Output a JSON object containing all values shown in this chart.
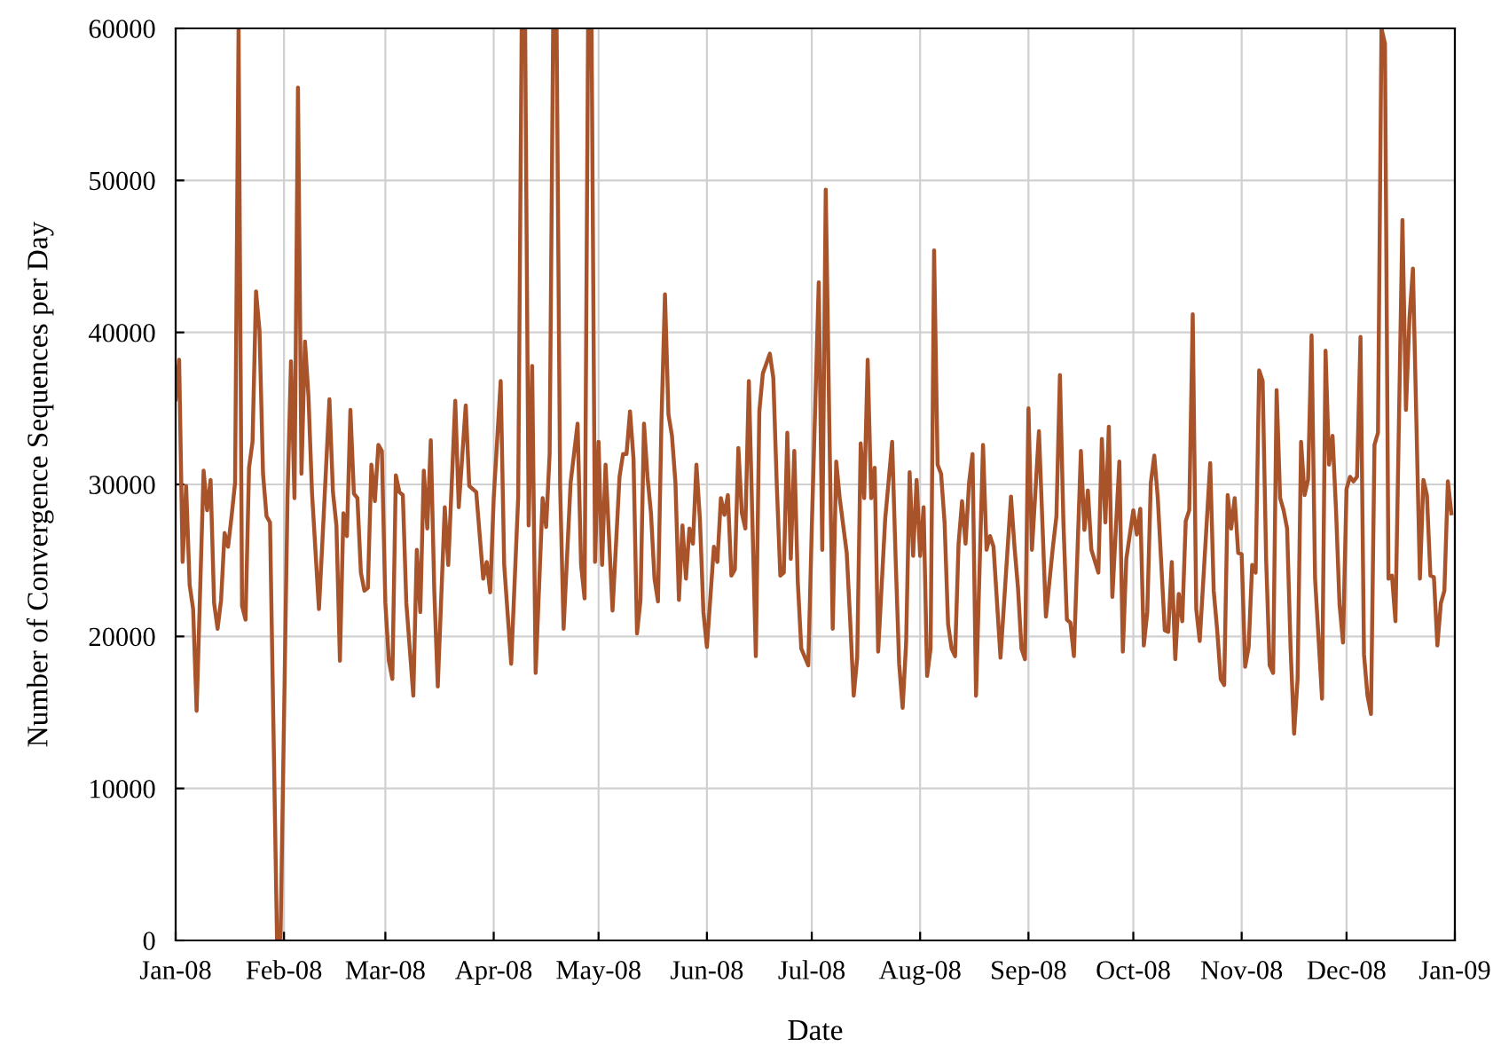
{
  "chart_data": {
    "type": "line",
    "xlabel": "Date",
    "ylabel": "Number of Convergence Sequences per Day",
    "xlim": [
      "2008-01-01",
      "2009-01-01"
    ],
    "xticks": [
      {
        "value": "2008-01-01",
        "label": "Jan-08"
      },
      {
        "value": "2008-02-01",
        "label": "Feb-08"
      },
      {
        "value": "2008-03-01",
        "label": "Mar-08"
      },
      {
        "value": "2008-04-01",
        "label": "Apr-08"
      },
      {
        "value": "2008-05-01",
        "label": "May-08"
      },
      {
        "value": "2008-06-01",
        "label": "Jun-08"
      },
      {
        "value": "2008-07-01",
        "label": "Jul-08"
      },
      {
        "value": "2008-08-01",
        "label": "Aug-08"
      },
      {
        "value": "2008-09-01",
        "label": "Sep-08"
      },
      {
        "value": "2008-10-01",
        "label": "Oct-08"
      },
      {
        "value": "2008-11-01",
        "label": "Nov-08"
      },
      {
        "value": "2008-12-01",
        "label": "Dec-08"
      },
      {
        "value": "2009-01-01",
        "label": "Jan-09"
      }
    ],
    "ylim": [
      0,
      60000
    ],
    "yticks": [
      0,
      10000,
      20000,
      30000,
      40000,
      50000,
      60000
    ],
    "grid": true,
    "marker": "none",
    "line_style": "solid",
    "series": [
      {
        "color": "#a9532b",
        "x": [
          "2008-01-01",
          "2008-01-02",
          "2008-01-03",
          "2008-01-04",
          "2008-01-05",
          "2008-01-06",
          "2008-01-07",
          "2008-01-09",
          "2008-01-10",
          "2008-01-11",
          "2008-01-12",
          "2008-01-13",
          "2008-01-14",
          "2008-01-15",
          "2008-01-16",
          "2008-01-17",
          "2008-01-18",
          "2008-01-19",
          "2008-01-20",
          "2008-01-21",
          "2008-01-22",
          "2008-01-23",
          "2008-01-24",
          "2008-01-25",
          "2008-01-26",
          "2008-01-27",
          "2008-01-28",
          "2008-01-30",
          "2008-01-31",
          "2008-02-02",
          "2008-02-03",
          "2008-02-04",
          "2008-02-05",
          "2008-02-06",
          "2008-02-07",
          "2008-02-08",
          "2008-02-09",
          "2008-02-11",
          "2008-02-12",
          "2008-02-14",
          "2008-02-15",
          "2008-02-16",
          "2008-02-17",
          "2008-02-18",
          "2008-02-19",
          "2008-02-20",
          "2008-02-21",
          "2008-02-22",
          "2008-02-23",
          "2008-02-24",
          "2008-02-25",
          "2008-02-26",
          "2008-02-27",
          "2008-02-28",
          "2008-02-29",
          "2008-03-01",
          "2008-03-02",
          "2008-03-03",
          "2008-03-04",
          "2008-03-05",
          "2008-03-06",
          "2008-03-07",
          "2008-03-09",
          "2008-03-10",
          "2008-03-11",
          "2008-03-12",
          "2008-03-13",
          "2008-03-14",
          "2008-03-15",
          "2008-03-16",
          "2008-03-18",
          "2008-03-19",
          "2008-03-21",
          "2008-03-22",
          "2008-03-24",
          "2008-03-25",
          "2008-03-27",
          "2008-03-29",
          "2008-03-30",
          "2008-03-31",
          "2008-04-01",
          "2008-04-03",
          "2008-04-04",
          "2008-04-06",
          "2008-04-08",
          "2008-04-09",
          "2008-04-10",
          "2008-04-11",
          "2008-04-12",
          "2008-04-13",
          "2008-04-15",
          "2008-04-16",
          "2008-04-17",
          "2008-04-18",
          "2008-04-19",
          "2008-04-20",
          "2008-04-21",
          "2008-04-23",
          "2008-04-25",
          "2008-04-26",
          "2008-04-27",
          "2008-04-28",
          "2008-04-29",
          "2008-04-30",
          "2008-05-01",
          "2008-05-02",
          "2008-05-03",
          "2008-05-05",
          "2008-05-07",
          "2008-05-08",
          "2008-05-09",
          "2008-05-10",
          "2008-05-11",
          "2008-05-12",
          "2008-05-13",
          "2008-05-14",
          "2008-05-15",
          "2008-05-16",
          "2008-05-17",
          "2008-05-18",
          "2008-05-19",
          "2008-05-20",
          "2008-05-21",
          "2008-05-22",
          "2008-05-23",
          "2008-05-24",
          "2008-05-25",
          "2008-05-26",
          "2008-05-27",
          "2008-05-28",
          "2008-05-29",
          "2008-05-30",
          "2008-05-31",
          "2008-06-01",
          "2008-06-03",
          "2008-06-04",
          "2008-06-05",
          "2008-06-06",
          "2008-06-07",
          "2008-06-08",
          "2008-06-09",
          "2008-06-10",
          "2008-06-11",
          "2008-06-12",
          "2008-06-13",
          "2008-06-15",
          "2008-06-16",
          "2008-06-17",
          "2008-06-19",
          "2008-06-20",
          "2008-06-21",
          "2008-06-22",
          "2008-06-23",
          "2008-06-24",
          "2008-06-25",
          "2008-06-26",
          "2008-06-27",
          "2008-06-28",
          "2008-06-30",
          "2008-07-01",
          "2008-07-03",
          "2008-07-04",
          "2008-07-05",
          "2008-07-06",
          "2008-07-07",
          "2008-07-08",
          "2008-07-09",
          "2008-07-11",
          "2008-07-12",
          "2008-07-13",
          "2008-07-14",
          "2008-07-15",
          "2008-07-16",
          "2008-07-17",
          "2008-07-18",
          "2008-07-19",
          "2008-07-20",
          "2008-07-22",
          "2008-07-24",
          "2008-07-25",
          "2008-07-26",
          "2008-07-27",
          "2008-07-28",
          "2008-07-29",
          "2008-07-30",
          "2008-07-31",
          "2008-08-01",
          "2008-08-02",
          "2008-08-03",
          "2008-08-04",
          "2008-08-05",
          "2008-08-06",
          "2008-08-07",
          "2008-08-08",
          "2008-08-09",
          "2008-08-10",
          "2008-08-11",
          "2008-08-12",
          "2008-08-13",
          "2008-08-14",
          "2008-08-15",
          "2008-08-16",
          "2008-08-17",
          "2008-08-19",
          "2008-08-20",
          "2008-08-21",
          "2008-08-22",
          "2008-08-24",
          "2008-08-27",
          "2008-08-28",
          "2008-08-29",
          "2008-08-30",
          "2008-08-31",
          "2008-09-01",
          "2008-09-02",
          "2008-09-04",
          "2008-09-06",
          "2008-09-08",
          "2008-09-09",
          "2008-09-10",
          "2008-09-11",
          "2008-09-12",
          "2008-09-13",
          "2008-09-14",
          "2008-09-16",
          "2008-09-17",
          "2008-09-18",
          "2008-09-19",
          "2008-09-21",
          "2008-09-22",
          "2008-09-23",
          "2008-09-24",
          "2008-09-25",
          "2008-09-27",
          "2008-09-28",
          "2008-09-29",
          "2008-10-01",
          "2008-10-02",
          "2008-10-03",
          "2008-10-04",
          "2008-10-05",
          "2008-10-06",
          "2008-10-07",
          "2008-10-08",
          "2008-10-10",
          "2008-10-11",
          "2008-10-12",
          "2008-10-13",
          "2008-10-14",
          "2008-10-15",
          "2008-10-16",
          "2008-10-17",
          "2008-10-18",
          "2008-10-19",
          "2008-10-20",
          "2008-10-23",
          "2008-10-24",
          "2008-10-25",
          "2008-10-26",
          "2008-10-27",
          "2008-10-28",
          "2008-10-29",
          "2008-10-30",
          "2008-10-31",
          "2008-11-01",
          "2008-11-02",
          "2008-11-03",
          "2008-11-04",
          "2008-11-05",
          "2008-11-06",
          "2008-11-07",
          "2008-11-08",
          "2008-11-09",
          "2008-11-10",
          "2008-11-11",
          "2008-11-12",
          "2008-11-13",
          "2008-11-14",
          "2008-11-15",
          "2008-11-16",
          "2008-11-17",
          "2008-11-18",
          "2008-11-19",
          "2008-11-20",
          "2008-11-21",
          "2008-11-22",
          "2008-11-24",
          "2008-11-25",
          "2008-11-26",
          "2008-11-27",
          "2008-11-28",
          "2008-11-29",
          "2008-11-30",
          "2008-12-01",
          "2008-12-02",
          "2008-12-03",
          "2008-12-04",
          "2008-12-05",
          "2008-12-06",
          "2008-12-07",
          "2008-12-08",
          "2008-12-09",
          "2008-12-10",
          "2008-12-11",
          "2008-12-12",
          "2008-12-13",
          "2008-12-14",
          "2008-12-15",
          "2008-12-17",
          "2008-12-18",
          "2008-12-19",
          "2008-12-20",
          "2008-12-22",
          "2008-12-23",
          "2008-12-24",
          "2008-12-25",
          "2008-12-26",
          "2008-12-27",
          "2008-12-28",
          "2008-12-29",
          "2008-12-30",
          "2008-12-31"
        ],
        "values": [
          35600,
          38200,
          24900,
          29900,
          23400,
          21800,
          15100,
          30900,
          28300,
          30300,
          22200,
          20500,
          22400,
          26800,
          25900,
          27900,
          30100,
          60000,
          22000,
          21100,
          31100,
          32800,
          42700,
          40100,
          30700,
          27900,
          27500,
          0,
          0,
          29100,
          38100,
          29100,
          56100,
          30700,
          39400,
          35800,
          29500,
          21800,
          26300,
          35600,
          29500,
          27300,
          18400,
          28100,
          26600,
          34900,
          29400,
          29100,
          24200,
          23000,
          23200,
          31300,
          28900,
          32600,
          32200,
          22200,
          18400,
          17200,
          30600,
          29500,
          29300,
          22200,
          16100,
          25700,
          21600,
          30900,
          27100,
          32900,
          23000,
          16700,
          28500,
          24700,
          35500,
          28500,
          35200,
          29900,
          29500,
          23800,
          24900,
          22900,
          29100,
          36800,
          24700,
          18200,
          29100,
          60000,
          60000,
          27300,
          37800,
          17600,
          29100,
          27200,
          32000,
          60000,
          60000,
          29900,
          20500,
          30100,
          34000,
          24700,
          22500,
          60000,
          60000,
          24900,
          32800,
          24700,
          31300,
          21700,
          30500,
          32000,
          32000,
          34800,
          31700,
          20200,
          22400,
          34000,
          30500,
          28100,
          23800,
          22300,
          34200,
          42500,
          34600,
          33200,
          30100,
          22400,
          27300,
          23800,
          27100,
          26100,
          31300,
          27700,
          21600,
          19300,
          25900,
          24900,
          29100,
          28000,
          29300,
          24000,
          24400,
          32400,
          28100,
          27100,
          36800,
          18700,
          34800,
          37300,
          38600,
          37000,
          29900,
          24000,
          24200,
          33400,
          25100,
          32200,
          23600,
          19200,
          18100,
          27100,
          43300,
          25700,
          49400,
          34200,
          20500,
          31500,
          29100,
          25500,
          21000,
          16100,
          18600,
          32700,
          29100,
          38200,
          29100,
          31100,
          19000,
          27700,
          32800,
          25100,
          18200,
          15300,
          19600,
          30800,
          25300,
          30300,
          25300,
          28500,
          17400,
          19200,
          45400,
          31300,
          30700,
          27500,
          20800,
          19200,
          18700,
          26100,
          28900,
          26100,
          30100,
          32000,
          16100,
          32600,
          25700,
          26600,
          25900,
          18600,
          29200,
          25900,
          23200,
          19200,
          18500,
          35000,
          25700,
          33500,
          21300,
          25900,
          27900,
          37200,
          27500,
          21100,
          20900,
          18700,
          32200,
          27000,
          29600,
          25700,
          24200,
          33000,
          27500,
          33800,
          22600,
          31500,
          19000,
          25100,
          28300,
          26700,
          28400,
          19400,
          21600,
          30100,
          31900,
          29100,
          20400,
          20300,
          24900,
          18500,
          22800,
          21000,
          27600,
          28300,
          41200,
          21800,
          19700,
          31400,
          23000,
          20400,
          17200,
          16800,
          29300,
          27100,
          29100,
          25500,
          25400,
          18000,
          19300,
          24700,
          24200,
          37500,
          36800,
          25100,
          18100,
          17600,
          36200,
          29100,
          28300,
          27100,
          19200,
          13600,
          17200,
          32800,
          29300,
          30300,
          39800,
          23800,
          15900,
          38800,
          31300,
          33200,
          28300,
          22100,
          19600,
          29700,
          30500,
          30200,
          30500,
          39700,
          18800,
          16100,
          14900,
          32600,
          33400,
          60000,
          59000,
          23800,
          24000,
          21000,
          47400,
          34900,
          40900,
          44200,
          23800,
          30300,
          29300,
          24000,
          23900,
          19400,
          22200,
          23000,
          30200,
          28100
        ]
      }
    ]
  }
}
